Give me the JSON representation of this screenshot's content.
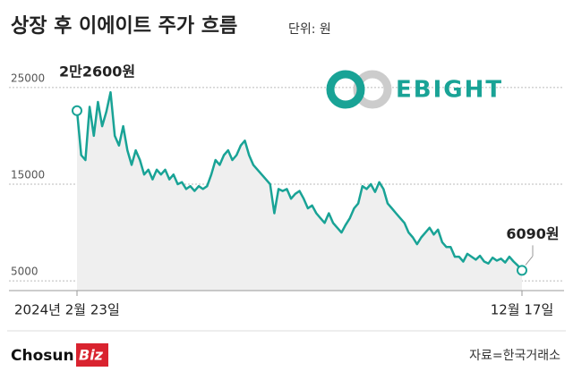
{
  "chart_data": {
    "type": "line",
    "title": "상장 후 이에이트 주가 흐름",
    "subtitle": "단위: 원",
    "logo_text": "EBIGHT",
    "brand": "Chosun",
    "brand_badge": "Biz",
    "source": "자료=한국거래소",
    "color": "#19a396",
    "area_color": "#efefef",
    "grid": true,
    "ylim": [
      4000,
      26000
    ],
    "yticks": [
      25000,
      15000,
      5000
    ],
    "categories": [
      "2024년 2월 23일",
      null,
      null,
      null,
      null,
      null,
      null,
      null,
      null,
      null,
      null,
      null,
      null,
      null,
      null,
      null,
      null,
      null,
      null,
      null,
      null,
      null,
      null,
      null,
      null,
      null,
      null,
      null,
      null,
      null,
      null,
      null,
      null,
      null,
      null,
      null,
      null,
      null,
      null,
      null,
      null,
      null,
      null,
      null,
      null,
      null,
      null,
      null,
      null,
      null,
      null,
      null,
      null,
      null,
      null,
      null,
      null,
      null,
      null,
      null,
      null,
      null,
      null,
      null,
      null,
      null,
      null,
      null,
      null,
      null,
      null,
      null,
      null,
      null,
      null,
      null,
      null,
      null,
      null,
      null,
      null,
      null,
      null,
      null,
      null,
      null,
      null,
      null,
      null,
      null,
      null,
      null,
      null,
      null,
      null,
      null,
      null,
      null,
      null,
      null,
      null,
      null,
      null,
      null,
      null,
      null,
      "12월 17일"
    ],
    "values": [
      22600,
      18000,
      17500,
      23000,
      20000,
      23500,
      21000,
      22500,
      24500,
      20000,
      19000,
      21000,
      18500,
      17000,
      18500,
      17500,
      16000,
      16500,
      15500,
      16500,
      16000,
      16500,
      15500,
      16000,
      15000,
      15200,
      14500,
      14800,
      14300,
      14800,
      14500,
      14800,
      16000,
      17500,
      17000,
      18000,
      18500,
      17500,
      18000,
      19000,
      19500,
      18000,
      17000,
      16500,
      16000,
      15500,
      15000,
      12000,
      14500,
      14300,
      14500,
      13500,
      14000,
      14300,
      13500,
      12500,
      12800,
      12000,
      11500,
      11000,
      12000,
      11000,
      10500,
      10000,
      10800,
      11500,
      12500,
      13000,
      14800,
      14500,
      15000,
      14200,
      15200,
      14500,
      13000,
      12500,
      12000,
      11500,
      11000,
      10000,
      9500,
      8800,
      9500,
      10000,
      10500,
      9800,
      10300,
      9000,
      8500,
      8500,
      7500,
      7500,
      7000,
      7800,
      7500,
      7200,
      7600,
      7000,
      6800,
      7400,
      7100,
      7300,
      6900,
      7500,
      7000,
      6600,
      6090
    ],
    "value_labels": [
      "2만2600원",
      null,
      null,
      null,
      null,
      null,
      null,
      null,
      null,
      null,
      null,
      null,
      null,
      null,
      null,
      null,
      null,
      null,
      null,
      null,
      null,
      null,
      null,
      null,
      null,
      null,
      null,
      null,
      null,
      null,
      null,
      null,
      null,
      null,
      null,
      null,
      null,
      null,
      null,
      null,
      null,
      null,
      null,
      null,
      null,
      null,
      null,
      null,
      null,
      null,
      null,
      null,
      null,
      null,
      null,
      null,
      null,
      null,
      null,
      null,
      null,
      null,
      null,
      null,
      null,
      null,
      null,
      null,
      null,
      null,
      null,
      null,
      null,
      null,
      null,
      null,
      null,
      null,
      null,
      null,
      null,
      null,
      null,
      null,
      null,
      null,
      null,
      null,
      null,
      null,
      null,
      null,
      null,
      null,
      null,
      null,
      null,
      null,
      null,
      null,
      null,
      null,
      null,
      null,
      null,
      null,
      "6090원"
    ]
  }
}
